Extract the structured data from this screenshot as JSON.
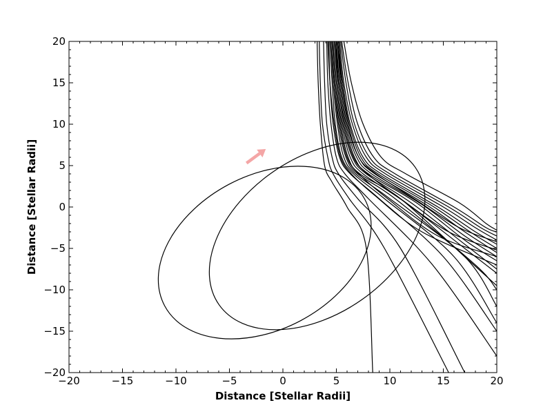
{
  "chart_data": {
    "type": "line",
    "title": "",
    "xlabel": "Distance [Stellar Radii]",
    "ylabel": "Distance [Stellar Radii]",
    "xlim": [
      -20,
      20
    ],
    "ylim": [
      -20,
      20
    ],
    "xticks": [
      -20,
      -15,
      -10,
      -5,
      0,
      5,
      10,
      15,
      20
    ],
    "yticks": [
      -20,
      -15,
      -10,
      -5,
      0,
      5,
      10,
      15,
      20
    ],
    "xtick_labels": [
      "−20",
      "−15",
      "−10",
      "−5",
      "0",
      "5",
      "10",
      "15",
      "20"
    ],
    "ytick_labels": [
      "−20",
      "−15",
      "−10",
      "−5",
      "0",
      "5",
      "10",
      "15",
      "20"
    ],
    "grid": false,
    "legend": "none",
    "colors": {
      "line": "#000000",
      "arrow": "#f4a6a6",
      "axes": "#000000"
    },
    "orbits": [
      {
        "center": [
          -1.7,
          -5.5
        ],
        "radii": [
          10.6,
          9.3
        ],
        "angle_deg": -28
      },
      {
        "center": [
          3.2,
          -3.5
        ],
        "radii": [
          11.2,
          9.4
        ],
        "angle_deg": -35
      }
    ],
    "arrow": {
      "from": [
        -3.4,
        5.3
      ],
      "to": [
        -1.6,
        7.0
      ]
    },
    "trajectories": [
      {
        "name": "",
        "x": [
          3.2,
          3.3,
          3.5,
          3.9,
          4.6,
          6.0,
          7.8,
          8.4
        ],
        "y": [
          20,
          15,
          10,
          5,
          3,
          0,
          -5,
          -20
        ]
      },
      {
        "name": "",
        "x": [
          3.4,
          3.5,
          3.7,
          4.2,
          4.7,
          6.2,
          9.5,
          15.5
        ],
        "y": [
          20,
          15,
          10,
          6,
          4,
          1,
          -5,
          -20
        ]
      },
      {
        "name": "",
        "x": [
          3.8,
          3.9,
          4.1,
          4.6,
          5.2,
          7.0,
          11.0,
          17.0
        ],
        "y": [
          20,
          15,
          10,
          6,
          4,
          1,
          -5,
          -20
        ]
      },
      {
        "name": "",
        "x": [
          4.1,
          4.2,
          4.5,
          5.0,
          5.8,
          8.0,
          14.0,
          20.0
        ],
        "y": [
          20,
          15,
          10,
          6,
          4,
          1,
          -7,
          -18
        ]
      },
      {
        "name": "",
        "x": [
          4.3,
          4.4,
          4.7,
          5.3,
          6.3,
          9.0,
          15.0,
          20.0
        ],
        "y": [
          20,
          15,
          10,
          6,
          4,
          1,
          -6,
          -15
        ]
      },
      {
        "name": "",
        "x": [
          4.4,
          4.6,
          4.9,
          5.5,
          6.6,
          9.5,
          16.0,
          20.0
        ],
        "y": [
          20,
          15,
          10,
          6,
          4,
          1,
          -6,
          -14
        ]
      },
      {
        "name": "",
        "x": [
          4.5,
          4.7,
          5.1,
          5.7,
          6.8,
          10.0,
          17.0,
          20.0
        ],
        "y": [
          20,
          15,
          10,
          6,
          4,
          1,
          -6,
          -12
        ]
      },
      {
        "name": "",
        "x": [
          4.6,
          4.8,
          5.2,
          5.9,
          7.0,
          10.5,
          18.0,
          20.0
        ],
        "y": [
          20,
          15,
          10,
          6,
          4,
          1,
          -7,
          -10
        ]
      },
      {
        "name": "",
        "x": [
          4.7,
          4.9,
          5.4,
          6.1,
          7.2,
          11.0,
          17.0,
          20.0
        ],
        "y": [
          20,
          15,
          10,
          6,
          4,
          1,
          -6,
          -9.5
        ]
      },
      {
        "name": "",
        "x": [
          4.8,
          5.0,
          5.5,
          6.3,
          7.5,
          11.5,
          17.0,
          20.0
        ],
        "y": [
          20,
          15,
          10,
          6,
          4,
          0.5,
          -5,
          -8
        ]
      },
      {
        "name": "",
        "x": [
          4.9,
          5.1,
          5.6,
          6.5,
          7.8,
          12.0,
          17.0,
          20.0
        ],
        "y": [
          20,
          15,
          10,
          6,
          4,
          0.5,
          -4.5,
          -7.5
        ]
      },
      {
        "name": "",
        "x": [
          5.0,
          5.2,
          5.8,
          6.7,
          8.0,
          12.5,
          17.0,
          20.0
        ],
        "y": [
          20,
          15,
          10,
          6,
          4,
          0.5,
          -4,
          -6.5
        ]
      },
      {
        "name": "",
        "x": [
          5.0,
          5.3,
          5.9,
          6.9,
          8.3,
          13.0,
          17.0,
          20.0
        ],
        "y": [
          20,
          15,
          10,
          6,
          4,
          0.3,
          -3.5,
          -6
        ]
      },
      {
        "name": "",
        "x": [
          5.1,
          5.4,
          6.0,
          7.1,
          8.6,
          13.5,
          17.0,
          20.0
        ],
        "y": [
          20,
          15,
          10,
          6,
          4,
          0.2,
          -3,
          -5.5
        ]
      },
      {
        "name": "",
        "x": [
          5.1,
          5.5,
          6.2,
          7.3,
          8.9,
          14.0,
          17.5,
          20.0
        ],
        "y": [
          20,
          15,
          10,
          6,
          4,
          0.1,
          -3,
          -5
        ]
      },
      {
        "name": "",
        "x": [
          5.2,
          5.6,
          6.3,
          7.5,
          9.2,
          14.5,
          18.0,
          20.0
        ],
        "y": [
          20,
          15,
          10,
          6,
          4,
          0,
          -3,
          -4.5
        ]
      },
      {
        "name": "",
        "x": [
          5.3,
          5.7,
          6.5,
          7.8,
          9.6,
          15.0,
          18.0,
          20.0
        ],
        "y": [
          20,
          15,
          10,
          6,
          4,
          0,
          -2.5,
          -4
        ]
      },
      {
        "name": "",
        "x": [
          5.4,
          5.9,
          6.7,
          8.1,
          10.0,
          15.5,
          18.5,
          20.0
        ],
        "y": [
          20,
          15,
          10,
          6,
          4,
          0,
          -2.5,
          -3.5
        ]
      },
      {
        "name": "",
        "x": [
          5.5,
          6.1,
          7.0,
          8.5,
          10.5,
          16.0,
          19.0,
          20.0
        ],
        "y": [
          20,
          15,
          10,
          6,
          4,
          0,
          -2.5,
          -3
        ]
      },
      {
        "name": "",
        "x": [
          5.7,
          6.4,
          7.5,
          9.2,
          11.5,
          16.5,
          19.0,
          20.0
        ],
        "y": [
          20,
          15,
          10,
          6,
          4,
          0.5,
          -2,
          -2.8
        ]
      },
      {
        "name": "",
        "x": [
          4.2,
          4.4,
          4.8,
          5.4,
          6.4,
          8.5,
          13.0,
          20.0
        ],
        "y": [
          20,
          15,
          10,
          6,
          4,
          1.5,
          -3,
          -7
        ]
      },
      {
        "name": "",
        "x": [
          4.6,
          4.8,
          5.3,
          6.0,
          7.1,
          9.8,
          14.5,
          20.0
        ],
        "y": [
          20,
          15,
          10,
          6,
          4,
          1,
          -3.5,
          -6
        ]
      },
      {
        "name": "",
        "x": [
          4.9,
          5.2,
          5.7,
          6.6,
          7.9,
          11.0,
          15.5,
          20.0
        ],
        "y": [
          20,
          15,
          10,
          6,
          4,
          1,
          -3,
          -5.2
        ]
      },
      {
        "name": "",
        "x": [
          5.2,
          5.5,
          6.1,
          7.1,
          8.7,
          12.5,
          16.5,
          20.0
        ],
        "y": [
          20,
          15,
          10,
          6,
          4,
          0.8,
          -2.5,
          -4.2
        ]
      }
    ]
  }
}
